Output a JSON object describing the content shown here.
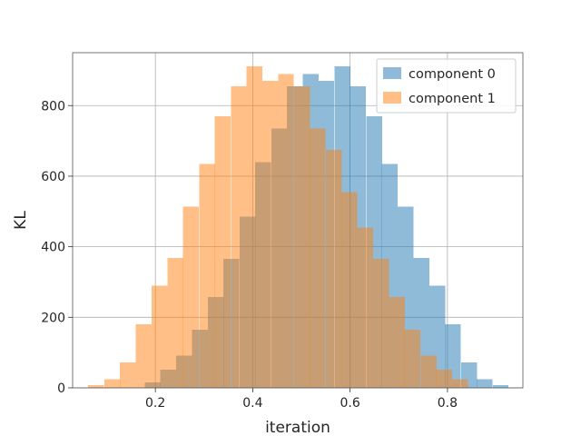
{
  "chart_data": {
    "type": "bar",
    "xlabel": "iteration",
    "ylabel": "KL",
    "xlim": [
      0.03,
      0.955
    ],
    "ylim": [
      0,
      950
    ],
    "xticks": [
      "0.2",
      "0.4",
      "0.6",
      "0.8"
    ],
    "yticks": [
      "0",
      "200",
      "400",
      "600",
      "800"
    ],
    "grid": true,
    "legend_position": "top-right",
    "bin_width": 0.0325,
    "series": [
      {
        "name": "component 0",
        "color": "#1f77b4",
        "opacity": 0.5,
        "bins": [
          {
            "x0": 0.178,
            "count": 15
          },
          {
            "x0": 0.21,
            "count": 52
          },
          {
            "x0": 0.243,
            "count": 92
          },
          {
            "x0": 0.275,
            "count": 165
          },
          {
            "x0": 0.308,
            "count": 258
          },
          {
            "x0": 0.34,
            "count": 365
          },
          {
            "x0": 0.373,
            "count": 485
          },
          {
            "x0": 0.405,
            "count": 640
          },
          {
            "x0": 0.438,
            "count": 735
          },
          {
            "x0": 0.47,
            "count": 855
          },
          {
            "x0": 0.503,
            "count": 890
          },
          {
            "x0": 0.535,
            "count": 870
          },
          {
            "x0": 0.568,
            "count": 912
          },
          {
            "x0": 0.6,
            "count": 855
          },
          {
            "x0": 0.633,
            "count": 770
          },
          {
            "x0": 0.665,
            "count": 635
          },
          {
            "x0": 0.698,
            "count": 513
          },
          {
            "x0": 0.73,
            "count": 368
          },
          {
            "x0": 0.763,
            "count": 290
          },
          {
            "x0": 0.795,
            "count": 180
          },
          {
            "x0": 0.828,
            "count": 72
          },
          {
            "x0": 0.86,
            "count": 25
          },
          {
            "x0": 0.893,
            "count": 8
          }
        ]
      },
      {
        "name": "component 1",
        "color": "#ff7f0e",
        "opacity": 0.5,
        "bins": [
          {
            "x0": 0.062,
            "count": 8
          },
          {
            "x0": 0.095,
            "count": 25
          },
          {
            "x0": 0.127,
            "count": 72
          },
          {
            "x0": 0.16,
            "count": 180
          },
          {
            "x0": 0.192,
            "count": 290
          },
          {
            "x0": 0.225,
            "count": 368
          },
          {
            "x0": 0.257,
            "count": 513
          },
          {
            "x0": 0.29,
            "count": 635
          },
          {
            "x0": 0.322,
            "count": 770
          },
          {
            "x0": 0.355,
            "count": 855
          },
          {
            "x0": 0.387,
            "count": 912
          },
          {
            "x0": 0.42,
            "count": 870
          },
          {
            "x0": 0.452,
            "count": 890
          },
          {
            "x0": 0.485,
            "count": 855
          },
          {
            "x0": 0.517,
            "count": 735
          },
          {
            "x0": 0.55,
            "count": 675
          },
          {
            "x0": 0.582,
            "count": 555
          },
          {
            "x0": 0.615,
            "count": 455
          },
          {
            "x0": 0.647,
            "count": 365
          },
          {
            "x0": 0.68,
            "count": 258
          },
          {
            "x0": 0.712,
            "count": 165
          },
          {
            "x0": 0.745,
            "count": 92
          },
          {
            "x0": 0.777,
            "count": 52
          },
          {
            "x0": 0.81,
            "count": 25
          }
        ]
      }
    ]
  }
}
